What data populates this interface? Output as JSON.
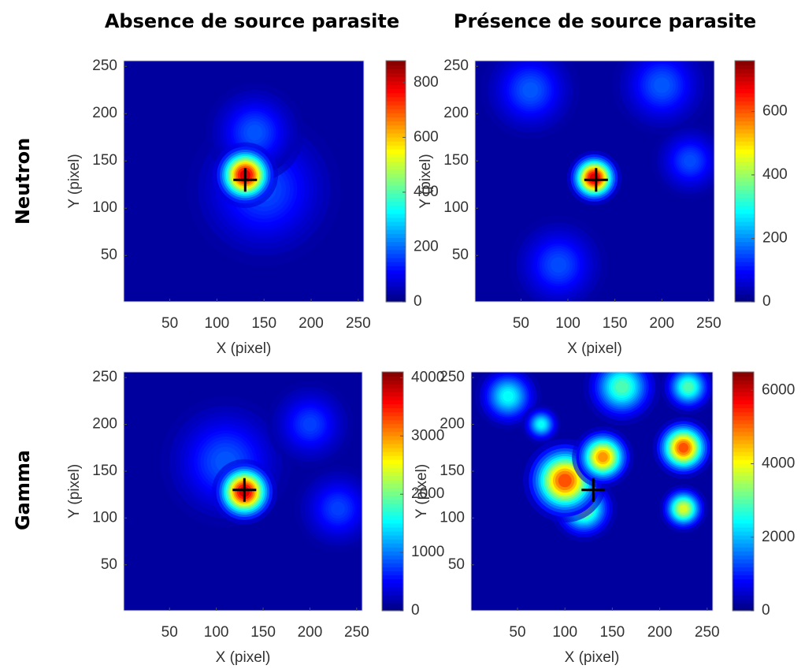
{
  "column_titles": [
    "Absence de source parasite",
    "Présence de source parasite"
  ],
  "row_labels": [
    "Neutron",
    "Gamma"
  ],
  "chart_data": [
    {
      "type": "heatmap",
      "xlabel": "X (pixel)",
      "ylabel": "Y (pixel)",
      "xlim": [
        1,
        256
      ],
      "ylim": [
        1,
        256
      ],
      "xticks": [
        50,
        100,
        150,
        200,
        250
      ],
      "yticks": [
        50,
        100,
        150,
        200,
        250
      ],
      "clim": [
        0,
        880
      ],
      "cticks": [
        0,
        200,
        400,
        600,
        800
      ],
      "marker": {
        "x": 130,
        "y": 130
      },
      "peaks": [
        {
          "x": 150,
          "y": 120,
          "radius": 70,
          "value": 160
        },
        {
          "x": 140,
          "y": 180,
          "radius": 45,
          "value": 170
        },
        {
          "x": 130,
          "y": 135,
          "radius": 30,
          "value": 850
        }
      ]
    },
    {
      "type": "heatmap",
      "xlabel": "X (pixel)",
      "ylabel": "Y (pixel)",
      "xlim": [
        1,
        256
      ],
      "ylim": [
        1,
        256
      ],
      "xticks": [
        50,
        100,
        150,
        200,
        250
      ],
      "yticks": [
        50,
        100,
        150,
        200,
        250
      ],
      "clim": [
        0,
        760
      ],
      "cticks": [
        0,
        200,
        400,
        600
      ],
      "marker": {
        "x": 130,
        "y": 130
      },
      "peaks": [
        {
          "x": 60,
          "y": 225,
          "radius": 45,
          "value": 150
        },
        {
          "x": 200,
          "y": 230,
          "radius": 45,
          "value": 150
        },
        {
          "x": 90,
          "y": 40,
          "radius": 45,
          "value": 140
        },
        {
          "x": 230,
          "y": 150,
          "radius": 35,
          "value": 140
        },
        {
          "x": 128,
          "y": 132,
          "radius": 25,
          "value": 740
        }
      ]
    },
    {
      "type": "heatmap",
      "xlabel": "X (pixel)",
      "ylabel": "Y (pixel)",
      "xlim": [
        1,
        256
      ],
      "ylim": [
        1,
        256
      ],
      "xticks": [
        50,
        100,
        150,
        200,
        250
      ],
      "yticks": [
        50,
        100,
        150,
        200,
        250
      ],
      "clim": [
        0,
        4100
      ],
      "cticks": [
        0,
        1000,
        2000,
        3000,
        4000
      ],
      "marker": {
        "x": 130,
        "y": 130
      },
      "peaks": [
        {
          "x": 110,
          "y": 160,
          "radius": 60,
          "value": 800
        },
        {
          "x": 200,
          "y": 200,
          "radius": 40,
          "value": 700
        },
        {
          "x": 230,
          "y": 110,
          "radius": 40,
          "value": 700
        },
        {
          "x": 130,
          "y": 128,
          "radius": 30,
          "value": 4000
        }
      ]
    },
    {
      "type": "heatmap",
      "xlabel": "X (pixel)",
      "ylabel": "Y (pixel)",
      "xlim": [
        1,
        256
      ],
      "ylim": [
        1,
        256
      ],
      "xticks": [
        50,
        100,
        150,
        200,
        250
      ],
      "yticks": [
        50,
        100,
        150,
        200,
        250
      ],
      "clim": [
        0,
        6500
      ],
      "cticks": [
        0,
        2000,
        4000,
        6000
      ],
      "marker": {
        "x": 130,
        "y": 130
      },
      "peaks": [
        {
          "x": 40,
          "y": 230,
          "radius": 30,
          "value": 2500
        },
        {
          "x": 160,
          "y": 240,
          "radius": 35,
          "value": 3000
        },
        {
          "x": 230,
          "y": 240,
          "radius": 25,
          "value": 3000
        },
        {
          "x": 75,
          "y": 200,
          "radius": 18,
          "value": 2500
        },
        {
          "x": 120,
          "y": 110,
          "radius": 30,
          "value": 3500
        },
        {
          "x": 225,
          "y": 110,
          "radius": 22,
          "value": 4000
        },
        {
          "x": 100,
          "y": 140,
          "radius": 38,
          "value": 5500
        },
        {
          "x": 140,
          "y": 165,
          "radius": 28,
          "value": 5000
        },
        {
          "x": 225,
          "y": 175,
          "radius": 28,
          "value": 5500
        }
      ]
    }
  ]
}
